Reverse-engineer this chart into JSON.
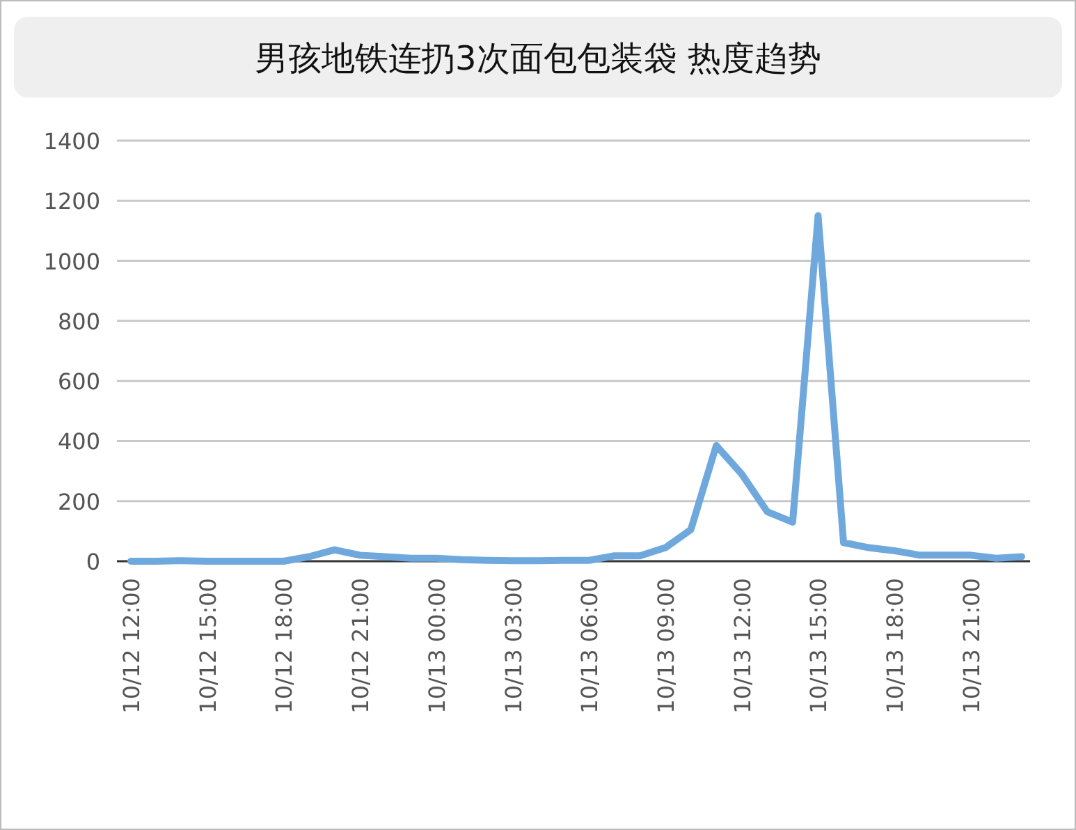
{
  "chart_data": {
    "type": "line",
    "title": "男孩地铁连扔3次面包包装袋 热度趋势",
    "categories": [
      "10/12 12:00",
      null,
      null,
      "10/12 15:00",
      null,
      null,
      "10/12 18:00",
      null,
      null,
      "10/12 21:00",
      null,
      null,
      "10/13 00:00",
      null,
      null,
      "10/13 03:00",
      null,
      null,
      "10/13 06:00",
      null,
      null,
      "10/13 09:00",
      null,
      null,
      "10/13 12:00",
      null,
      null,
      "10/13 15:00",
      null,
      null,
      "10/13 18:00",
      null,
      null,
      "10/13 21:00",
      null,
      null
    ],
    "series": [
      {
        "color": "#6fa8dc",
        "values": [
          0,
          0,
          2,
          0,
          0,
          0,
          0,
          15,
          38,
          20,
          15,
          10,
          10,
          5,
          3,
          2,
          2,
          3,
          3,
          18,
          18,
          45,
          105,
          385,
          290,
          165,
          130,
          1150,
          62,
          45,
          35,
          20,
          20,
          20,
          10,
          15
        ]
      }
    ],
    "ylim": [
      0,
      1400
    ],
    "yticks": [
      0,
      200,
      400,
      600,
      800,
      1000,
      1200,
      1400
    ],
    "grid": "y",
    "marker": "none",
    "line_style": "solid"
  }
}
